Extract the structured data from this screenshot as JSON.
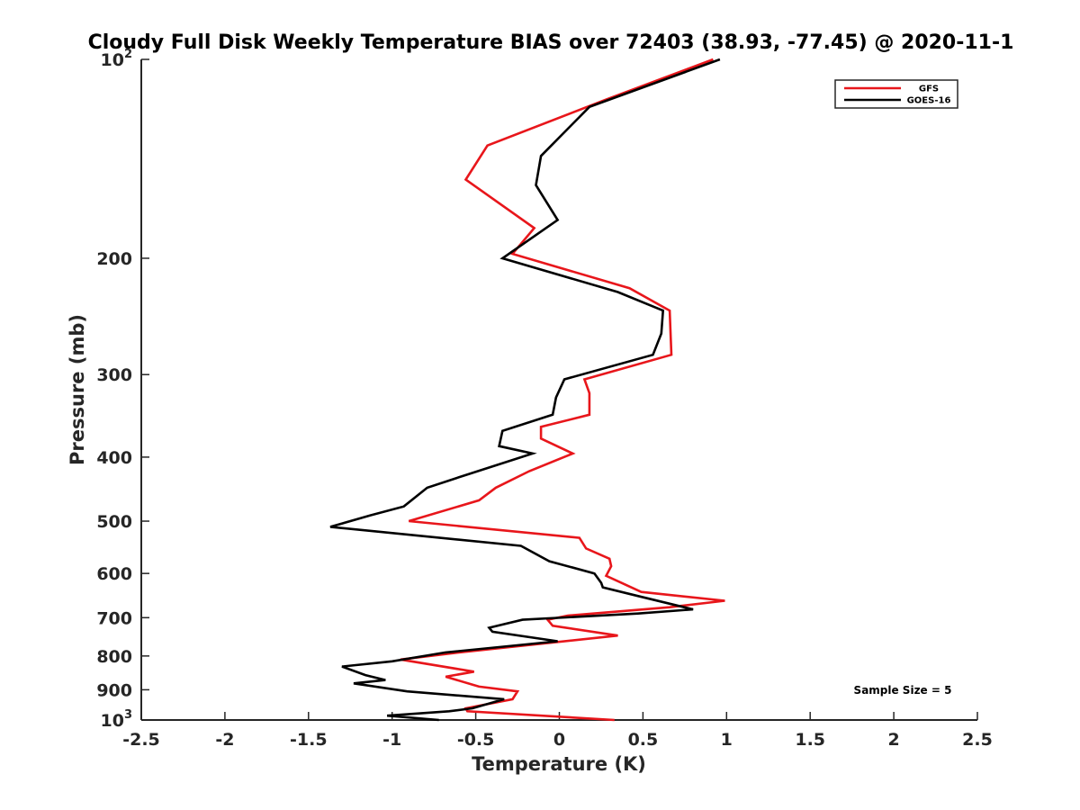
{
  "chart_data": {
    "type": "line",
    "title": "Cloudy Full Disk Weekly Temperature BIAS over 72403 (38.93, -77.45) @ 2020-11-1",
    "xlabel": "Temperature (K)",
    "ylabel": "Pressure (mb)",
    "xlim": [
      -2.5,
      2.5
    ],
    "ylim": [
      100,
      1000
    ],
    "y_scale": "log",
    "y_reversed": true,
    "grid": false,
    "legend_position": "top-right",
    "x_ticks": [
      {
        "value": -2.5,
        "label": "-2.5"
      },
      {
        "value": -2,
        "label": "-2"
      },
      {
        "value": -1.5,
        "label": "-1.5"
      },
      {
        "value": -1,
        "label": "-1"
      },
      {
        "value": -0.5,
        "label": "-0.5"
      },
      {
        "value": 0,
        "label": "0"
      },
      {
        "value": 0.5,
        "label": "0.5"
      },
      {
        "value": 1,
        "label": "1"
      },
      {
        "value": 1.5,
        "label": "1.5"
      },
      {
        "value": 2,
        "label": "2"
      },
      {
        "value": 2.5,
        "label": "2.5"
      }
    ],
    "y_ticks": [
      {
        "value": 100,
        "label": "10",
        "sup": "2"
      },
      {
        "value": 200,
        "label": "200",
        "sup": ""
      },
      {
        "value": 300,
        "label": "300",
        "sup": ""
      },
      {
        "value": 400,
        "label": "400",
        "sup": ""
      },
      {
        "value": 500,
        "label": "500",
        "sup": ""
      },
      {
        "value": 600,
        "label": "600",
        "sup": ""
      },
      {
        "value": 700,
        "label": "700",
        "sup": ""
      },
      {
        "value": 800,
        "label": "800",
        "sup": ""
      },
      {
        "value": 900,
        "label": "900",
        "sup": ""
      },
      {
        "value": 1000,
        "label": "10",
        "sup": "3"
      }
    ],
    "series": [
      {
        "name": "GFS",
        "color": "#e8161b",
        "points": [
          [
            0.92,
            100
          ],
          [
            0.28,
            115
          ],
          [
            -0.43,
            135
          ],
          [
            -0.56,
            152
          ],
          [
            -0.15,
            180
          ],
          [
            -0.28,
            197
          ],
          [
            0.42,
            222
          ],
          [
            0.66,
            240
          ],
          [
            0.67,
            280
          ],
          [
            0.15,
            305
          ],
          [
            0.18,
            320
          ],
          [
            0.18,
            345
          ],
          [
            -0.11,
            360
          ],
          [
            -0.11,
            375
          ],
          [
            0.08,
            395
          ],
          [
            -0.18,
            420
          ],
          [
            -0.38,
            445
          ],
          [
            -0.48,
            465
          ],
          [
            -0.9,
            500
          ],
          [
            0.12,
            530
          ],
          [
            0.16,
            550
          ],
          [
            0.3,
            570
          ],
          [
            0.31,
            585
          ],
          [
            0.28,
            605
          ],
          [
            0.49,
            640
          ],
          [
            0.99,
            660
          ],
          [
            0.66,
            675
          ],
          [
            0.05,
            695
          ],
          [
            -0.07,
            705
          ],
          [
            -0.04,
            720
          ],
          [
            0.35,
            745
          ],
          [
            -0.6,
            790
          ],
          [
            -0.95,
            810
          ],
          [
            -0.51,
            845
          ],
          [
            -0.68,
            860
          ],
          [
            -0.48,
            890
          ],
          [
            -0.25,
            905
          ],
          [
            -0.28,
            930
          ],
          [
            -0.56,
            960
          ],
          [
            -0.55,
            970
          ],
          [
            0.33,
            1000
          ]
        ]
      },
      {
        "name": "GOES-16",
        "color": "#000000",
        "points": [
          [
            0.96,
            100
          ],
          [
            0.18,
            118
          ],
          [
            -0.11,
            140
          ],
          [
            -0.14,
            155
          ],
          [
            -0.01,
            175
          ],
          [
            -0.34,
            200
          ],
          [
            0.35,
            225
          ],
          [
            0.62,
            240
          ],
          [
            0.61,
            260
          ],
          [
            0.56,
            280
          ],
          [
            0.03,
            305
          ],
          [
            -0.02,
            325
          ],
          [
            -0.04,
            345
          ],
          [
            -0.34,
            365
          ],
          [
            -0.36,
            385
          ],
          [
            -0.16,
            395
          ],
          [
            -0.55,
            425
          ],
          [
            -0.79,
            445
          ],
          [
            -0.93,
            475
          ],
          [
            -1.13,
            490
          ],
          [
            -1.37,
            510
          ],
          [
            -0.23,
            545
          ],
          [
            -0.06,
            575
          ],
          [
            0.21,
            600
          ],
          [
            0.25,
            620
          ],
          [
            0.26,
            630
          ],
          [
            0.48,
            650
          ],
          [
            0.8,
            680
          ],
          [
            0.47,
            690
          ],
          [
            -0.22,
            705
          ],
          [
            -0.42,
            725
          ],
          [
            -0.4,
            735
          ],
          [
            -0.01,
            760
          ],
          [
            -0.68,
            790
          ],
          [
            -1.0,
            815
          ],
          [
            -1.3,
            830
          ],
          [
            -1.16,
            855
          ],
          [
            -1.04,
            870
          ],
          [
            -1.23,
            880
          ],
          [
            -0.91,
            905
          ],
          [
            -0.33,
            930
          ],
          [
            -0.52,
            960
          ],
          [
            -0.66,
            970
          ],
          [
            -1.03,
            985
          ],
          [
            -0.72,
            1000
          ]
        ]
      }
    ],
    "annotation": "Sample Size = 5"
  }
}
